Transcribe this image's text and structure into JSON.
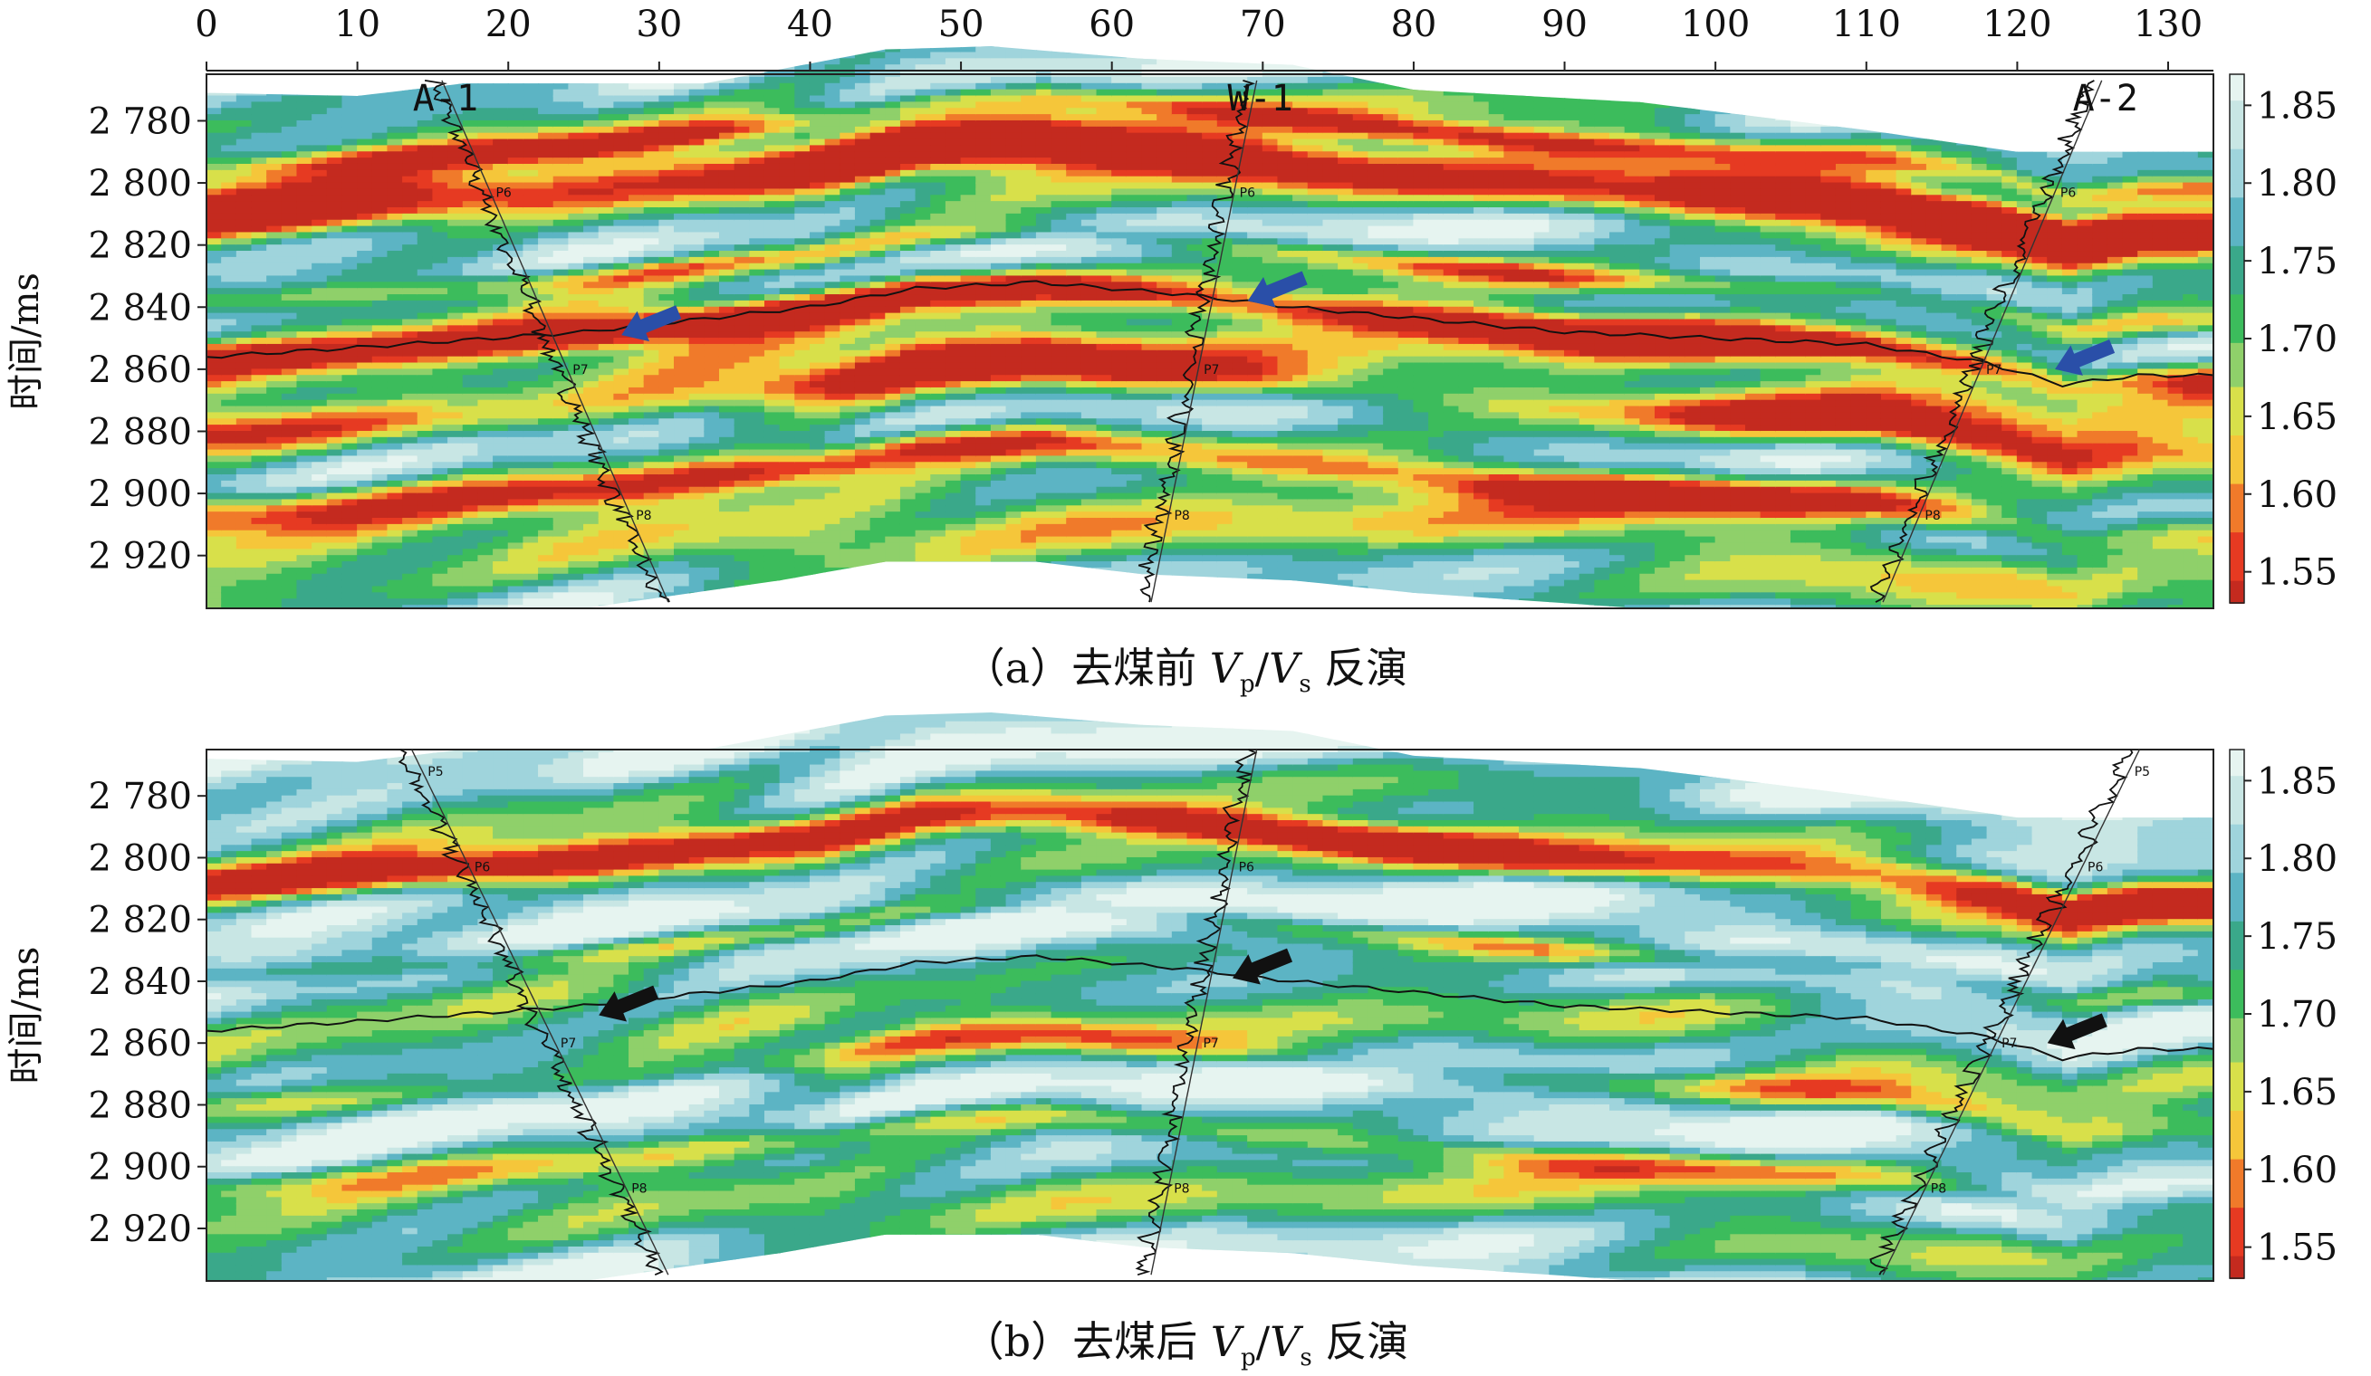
{
  "colors": {
    "scale": [
      "#c42a1f",
      "#e63a22",
      "#f07a2a",
      "#f5c63a",
      "#d8e04a",
      "#8fd06a",
      "#3cbc5c",
      "#3aa88a",
      "#5cb4c4",
      "#9fd4dc",
      "#c8e6e4",
      "#e6f4f0"
    ],
    "well_curve": "#111111",
    "horizon": "#111111",
    "arrow_a": "#2a4fa8",
    "arrow_b": "#111111"
  },
  "chart_data": [
    {
      "type": "heatmap",
      "panel": "a",
      "caption": {
        "prefix": "（a）去煤前 ",
        "v1": "V",
        "s1": "p",
        "slash": "/",
        "v2": "V",
        "s2": "s",
        "suffix": " 反演"
      },
      "x_ticks": [
        "0",
        "10",
        "20",
        "30",
        "40",
        "50",
        "60",
        "70",
        "80",
        "90",
        "100",
        "110",
        "120",
        "130"
      ],
      "xlim": [
        0,
        133
      ],
      "ylabel": "时间/ms",
      "y_ticks": [
        "2 780",
        "2 800",
        "2 820",
        "2 840",
        "2 860",
        "2 880",
        "2 900",
        "2 920"
      ],
      "y_tick_values": [
        2780,
        2800,
        2820,
        2840,
        2860,
        2880,
        2900,
        2920
      ],
      "ylim": [
        2765,
        2937
      ],
      "colorbar_ticks": [
        "1.85",
        "1.80",
        "1.75",
        "1.70",
        "1.65",
        "1.60",
        "1.55"
      ],
      "colorbar_values": [
        1.85,
        1.8,
        1.75,
        1.7,
        1.65,
        1.6,
        1.55
      ],
      "colorbar_range": [
        1.53,
        1.87
      ],
      "wells": [
        {
          "name": "A-1",
          "x": [
            15.0,
            30.0
          ],
          "t": [
            2767,
            2935
          ],
          "markers": [
            "P6",
            "P7",
            "P8"
          ]
        },
        {
          "name": "W-1",
          "x": [
            69.0,
            62.0
          ],
          "t": [
            2767,
            2935
          ],
          "markers": [
            "P6",
            "P7",
            "P8"
          ]
        },
        {
          "name": "A-2",
          "x": [
            125.0,
            110.5
          ],
          "t": [
            2767,
            2935
          ],
          "markers": [
            "P6",
            "P7",
            "P8"
          ]
        }
      ],
      "arrows": [
        {
          "x": 27.5,
          "t": 2849
        },
        {
          "x": 69.0,
          "t": 2838
        },
        {
          "x": 122.5,
          "t": 2860
        }
      ]
    },
    {
      "type": "heatmap",
      "panel": "b",
      "caption": {
        "prefix": "（b）去煤后 ",
        "v1": "V",
        "s1": "p",
        "slash": "/",
        "v2": "V",
        "s2": "s",
        "suffix": " 反演"
      },
      "x_ticks": [],
      "xlim": [
        0,
        133
      ],
      "ylabel": "时间/ms",
      "y_ticks": [
        "2 780",
        "2 800",
        "2 820",
        "2 840",
        "2 860",
        "2 880",
        "2 900",
        "2 920"
      ],
      "y_tick_values": [
        2780,
        2800,
        2820,
        2840,
        2860,
        2880,
        2900,
        2920
      ],
      "ylim": [
        2765,
        2937
      ],
      "colorbar_ticks": [
        "1.85",
        "1.80",
        "1.75",
        "1.70",
        "1.65",
        "1.60",
        "1.55"
      ],
      "colorbar_values": [
        1.85,
        1.8,
        1.75,
        1.7,
        1.65,
        1.6,
        1.55
      ],
      "colorbar_range": [
        1.53,
        1.87
      ],
      "wells": [
        {
          "name": "",
          "x": [
            13.0,
            30.0
          ],
          "t": [
            2765,
            2935
          ],
          "markers": [
            "P5",
            "P6",
            "P7",
            "P8"
          ]
        },
        {
          "name": "",
          "x": [
            69.0,
            62.0
          ],
          "t": [
            2765,
            2935
          ],
          "markers": [
            "P6",
            "P7",
            "P8"
          ]
        },
        {
          "name": "",
          "x": [
            127.5,
            110.5
          ],
          "t": [
            2765,
            2935
          ],
          "markers": [
            "P5",
            "P6",
            "P7",
            "P8"
          ]
        }
      ],
      "arrows": [
        {
          "x": 26.0,
          "t": 2851
        },
        {
          "x": 68.0,
          "t": 2839
        },
        {
          "x": 122.0,
          "t": 2860
        }
      ]
    }
  ]
}
